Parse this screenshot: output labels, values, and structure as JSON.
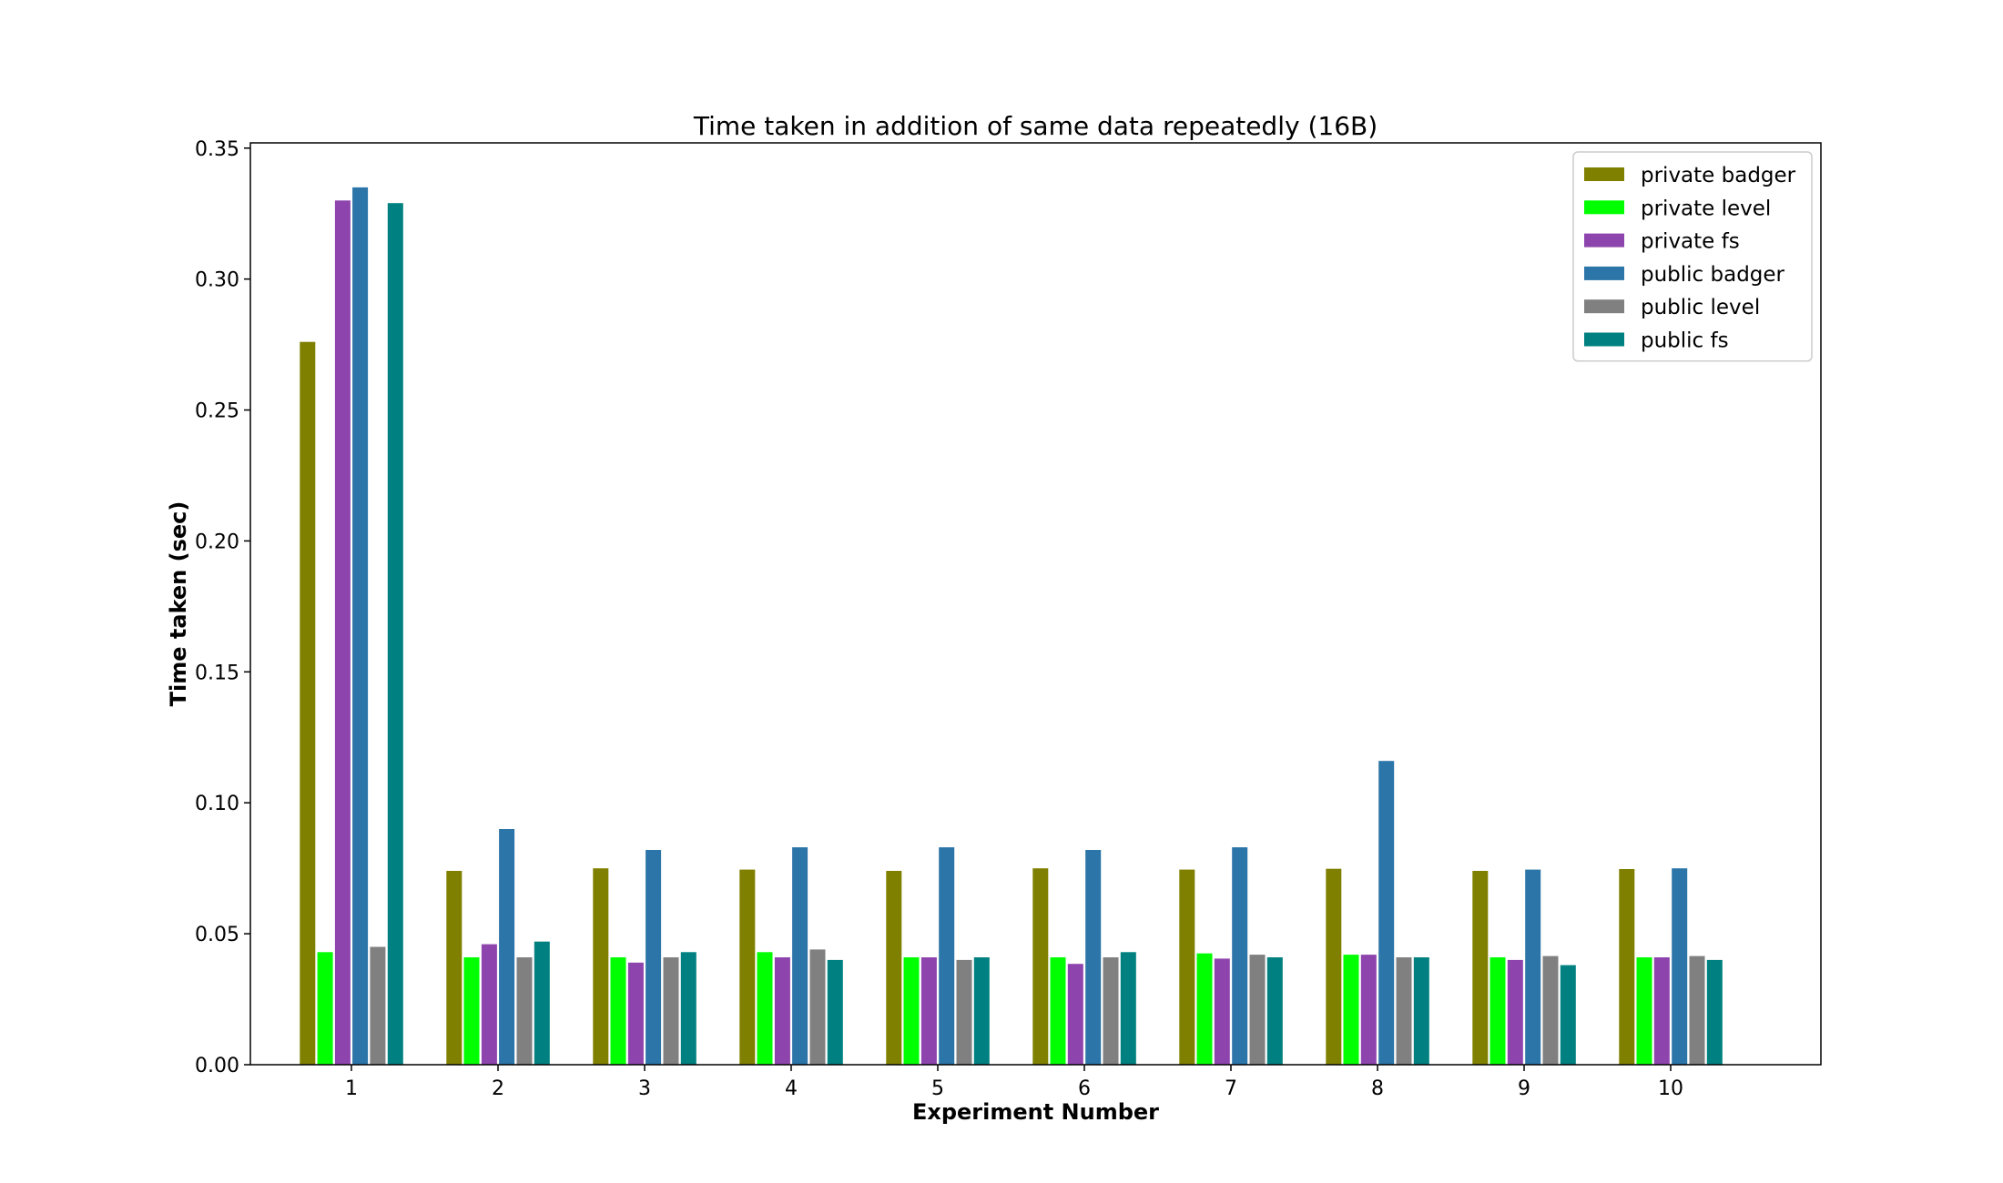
{
  "chart_data": {
    "type": "bar",
    "title": "Time taken in addition of same data repeatedly (16B)",
    "xlabel": "Experiment Number",
    "ylabel": "Time taken (sec)",
    "ylim": [
      0,
      0.352
    ],
    "yticks": [
      "0.00",
      "0.05",
      "0.10",
      "0.15",
      "0.20",
      "0.25",
      "0.30",
      "0.35"
    ],
    "categories": [
      "1",
      "2",
      "3",
      "4",
      "5",
      "6",
      "7",
      "8",
      "9",
      "10"
    ],
    "legend_position": "top-right",
    "grid": false,
    "series": [
      {
        "name": "private badger",
        "color": "#808000",
        "values": [
          0.276,
          0.074,
          0.075,
          0.0745,
          0.074,
          0.075,
          0.0745,
          0.0748,
          0.074,
          0.0747
        ]
      },
      {
        "name": "private level",
        "color": "#00ff00",
        "values": [
          0.043,
          0.041,
          0.041,
          0.043,
          0.041,
          0.041,
          0.0425,
          0.042,
          0.041,
          0.041
        ]
      },
      {
        "name": "private fs",
        "color": "#8e44ad",
        "values": [
          0.33,
          0.046,
          0.039,
          0.041,
          0.041,
          0.0385,
          0.0405,
          0.042,
          0.04,
          0.041
        ]
      },
      {
        "name": "public badger",
        "color": "#2c75a8",
        "values": [
          0.335,
          0.09,
          0.082,
          0.083,
          0.083,
          0.082,
          0.083,
          0.116,
          0.0745,
          0.075
        ]
      },
      {
        "name": "public level",
        "color": "#808080",
        "values": [
          0.045,
          0.041,
          0.041,
          0.044,
          0.04,
          0.041,
          0.042,
          0.041,
          0.0415,
          0.0415
        ]
      },
      {
        "name": "public fs",
        "color": "#008080",
        "values": [
          0.329,
          0.047,
          0.043,
          0.04,
          0.041,
          0.043,
          0.041,
          0.041,
          0.038,
          0.04
        ]
      }
    ]
  }
}
